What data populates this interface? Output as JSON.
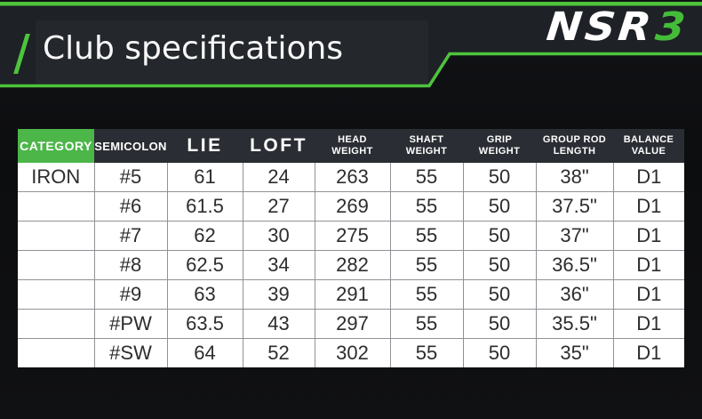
{
  "header": {
    "title": "Club specifications",
    "logo_text": "NSR",
    "logo_suffix": "3"
  },
  "colors": {
    "accent_green": "#4ec33c",
    "category_green": "#4cb649",
    "band_dark": "#1e2126",
    "table_header_dark": "#2a2d33"
  },
  "table": {
    "columns": [
      {
        "label": "CATEGORY"
      },
      {
        "label": "SEMICOLON"
      },
      {
        "label": "LIE"
      },
      {
        "label": "LOFT"
      },
      {
        "label": "HEAD\nWEIGHT"
      },
      {
        "label": "SHAFT\nWEIGHT"
      },
      {
        "label": "GRIP\nWEIGHT"
      },
      {
        "label": "GROUP ROD\nLENGTH"
      },
      {
        "label": "BALANCE\nVALUE"
      }
    ],
    "rows": [
      [
        "IRON",
        "#5",
        "61",
        "24",
        "263",
        "55",
        "50",
        "38\"",
        "D1"
      ],
      [
        "",
        "#6",
        "61.5",
        "27",
        "269",
        "55",
        "50",
        "37.5\"",
        "D1"
      ],
      [
        "",
        "#7",
        "62",
        "30",
        "275",
        "55",
        "50",
        "37\"",
        "D1"
      ],
      [
        "",
        "#8",
        "62.5",
        "34",
        "282",
        "55",
        "50",
        "36.5\"",
        "D1"
      ],
      [
        "",
        "#9",
        "63",
        "39",
        "291",
        "55",
        "50",
        "36\"",
        "D1"
      ],
      [
        "",
        "#PW",
        "63.5",
        "43",
        "297",
        "55",
        "50",
        "35.5\"",
        "D1"
      ],
      [
        "",
        "#SW",
        "64",
        "52",
        "302",
        "55",
        "50",
        "35\"",
        "D1"
      ]
    ]
  }
}
